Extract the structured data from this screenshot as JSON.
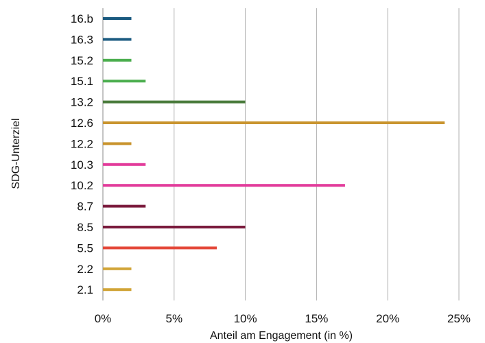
{
  "chart_data": {
    "type": "bar",
    "orientation": "horizontal",
    "categories": [
      "16.b",
      "16.3",
      "15.2",
      "15.1",
      "13.2",
      "12.6",
      "12.2",
      "10.3",
      "10.2",
      "8.7",
      "8.5",
      "5.5",
      "2.2",
      "2.1"
    ],
    "values": [
      2,
      2,
      2,
      3,
      10,
      24,
      2,
      3,
      17,
      3,
      10,
      8,
      2,
      2
    ],
    "colors": [
      "#1a5a80",
      "#1a5a80",
      "#4cae4f",
      "#4cae4f",
      "#4a7b3c",
      "#c9942e",
      "#c9942e",
      "#e23a9a",
      "#e23a9a",
      "#7a1a3c",
      "#7a1a3c",
      "#e4483a",
      "#d1a437",
      "#d1a437"
    ],
    "xlabel": "Anteil am Engagement (in %)",
    "ylabel": "SDG-Unterziel",
    "xlim": [
      0,
      25
    ],
    "x_ticks": [
      0,
      5,
      10,
      15,
      20,
      25
    ],
    "x_tick_labels": [
      "0%",
      "5%",
      "10%",
      "15%",
      "20%",
      "25%"
    ],
    "grid": "vertical",
    "legend": "none"
  }
}
